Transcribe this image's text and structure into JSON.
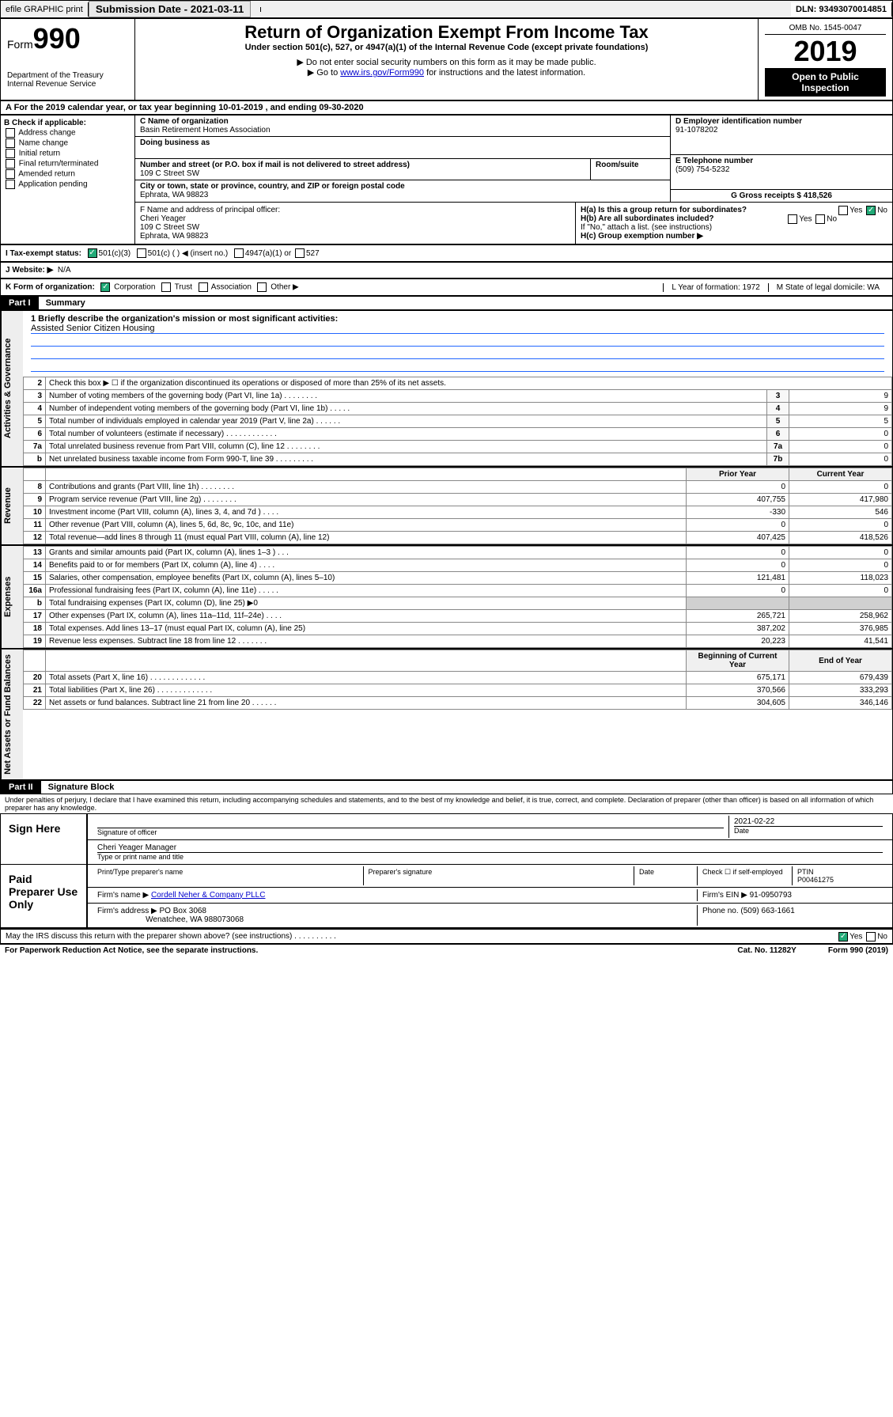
{
  "topbar": {
    "efile": "efile GRAPHIC print",
    "submission_label": "Submission Date - 2021-03-11",
    "dln": "DLN: 93493070014851"
  },
  "header": {
    "form_word": "Form",
    "form_num": "990",
    "dept": "Department of the Treasury",
    "irs": "Internal Revenue Service",
    "title": "Return of Organization Exempt From Income Tax",
    "subtitle": "Under section 501(c), 527, or 4947(a)(1) of the Internal Revenue Code (except private foundations)",
    "note1": "▶ Do not enter social security numbers on this form as it may be made public.",
    "note2_pre": "▶ Go to ",
    "note2_link": "www.irs.gov/Form990",
    "note2_post": " for instructions and the latest information.",
    "omb": "OMB No. 1545-0047",
    "year": "2019",
    "open": "Open to Public Inspection"
  },
  "row_a": "A For the 2019 calendar year, or tax year beginning 10-01-2019    , and ending 09-30-2020",
  "col_b": {
    "title": "B Check if applicable:",
    "items": [
      "Address change",
      "Name change",
      "Initial return",
      "Final return/terminated",
      "Amended return",
      "Application pending"
    ]
  },
  "cd": {
    "name_lbl": "C Name of organization",
    "name": "Basin Retirement Homes Association",
    "dba_lbl": "Doing business as",
    "addr_lbl": "Number and street (or P.O. box if mail is not delivered to street address)",
    "room_lbl": "Room/suite",
    "addr": "109 C Street SW",
    "city_lbl": "City or town, state or province, country, and ZIP or foreign postal code",
    "city": "Ephrata, WA  98823"
  },
  "de": {
    "d_lbl": "D Employer identification number",
    "ein": "91-1078202",
    "e_lbl": "E Telephone number",
    "phone": "(509) 754-5232",
    "g_lbl": "G Gross receipts $ 418,526"
  },
  "f": {
    "lbl": "F  Name and address of principal officer:",
    "name": "Cheri Yeager",
    "addr1": "109 C Street SW",
    "addr2": "Ephrata, WA  98823"
  },
  "h": {
    "ha": "H(a)  Is this a group return for subordinates?",
    "hb": "H(b)  Are all subordinates included?",
    "hb_note": "If \"No,\" attach a list. (see instructions)",
    "hc": "H(c)  Group exemption number ▶",
    "yes": "Yes",
    "no": "No"
  },
  "i": {
    "lbl": "I     Tax-exempt status:",
    "o1": "501(c)(3)",
    "o2": "501(c) (  ) ◀ (insert no.)",
    "o3": "4947(a)(1) or",
    "o4": "527"
  },
  "j": {
    "lbl": "J    Website: ▶",
    "val": "N/A"
  },
  "k": {
    "lbl": "K Form of organization:",
    "o1": "Corporation",
    "o2": "Trust",
    "o3": "Association",
    "o4": "Other ▶",
    "l": "L Year of formation: 1972",
    "m": "M State of legal domicile: WA"
  },
  "part1": {
    "hdr": "Part I",
    "title": "Summary"
  },
  "mission": {
    "lbl": "1  Briefly describe the organization's mission or most significant activities:",
    "text": "Assisted Senior Citizen Housing"
  },
  "gov_lines": [
    {
      "n": "2",
      "t": "Check this box ▶ ☐  if the organization discontinued its operations or disposed of more than 25% of its net assets."
    },
    {
      "n": "3",
      "t": "Number of voting members of the governing body (Part VI, line 1a)   .    .    .    .    .    .    .    .",
      "b": "3",
      "v": "9"
    },
    {
      "n": "4",
      "t": "Number of independent voting members of the governing body (Part VI, line 1b)   .    .    .    .    .",
      "b": "4",
      "v": "9"
    },
    {
      "n": "5",
      "t": "Total number of individuals employed in calendar year 2019 (Part V, line 2a)   .    .    .    .    .    .",
      "b": "5",
      "v": "5"
    },
    {
      "n": "6",
      "t": "Total number of volunteers (estimate if necessary)   .    .    .    .    .    .    .    .    .    .    .    .",
      "b": "6",
      "v": "0"
    },
    {
      "n": "7a",
      "t": "Total unrelated business revenue from Part VIII, column (C), line 12   .    .    .    .    .    .    .    .",
      "b": "7a",
      "v": "0"
    },
    {
      "n": "b",
      "t": "Net unrelated business taxable income from Form 990-T, line 39   .    .    .    .    .    .    .    .    .",
      "b": "7b",
      "v": "0"
    }
  ],
  "rev_hdr": {
    "py": "Prior Year",
    "cy": "Current Year"
  },
  "rev_lines": [
    {
      "n": "8",
      "t": "Contributions and grants (Part VIII, line 1h)   .    .    .    .    .    .    .    .",
      "py": "0",
      "cy": "0"
    },
    {
      "n": "9",
      "t": "Program service revenue (Part VIII, line 2g)   .    .    .    .    .    .    .    .",
      "py": "407,755",
      "cy": "417,980"
    },
    {
      "n": "10",
      "t": "Investment income (Part VIII, column (A), lines 3, 4, and 7d )   .    .    .    .",
      "py": "-330",
      "cy": "546"
    },
    {
      "n": "11",
      "t": "Other revenue (Part VIII, column (A), lines 5, 6d, 8c, 9c, 10c, and 11e)",
      "py": "0",
      "cy": "0"
    },
    {
      "n": "12",
      "t": "Total revenue—add lines 8 through 11 (must equal Part VIII, column (A), line 12)",
      "py": "407,425",
      "cy": "418,526"
    }
  ],
  "exp_lines": [
    {
      "n": "13",
      "t": "Grants and similar amounts paid (Part IX, column (A), lines 1–3 )   .    .    .",
      "py": "0",
      "cy": "0"
    },
    {
      "n": "14",
      "t": "Benefits paid to or for members (Part IX, column (A), line 4)   .    .    .    .",
      "py": "0",
      "cy": "0"
    },
    {
      "n": "15",
      "t": "Salaries, other compensation, employee benefits (Part IX, column (A), lines 5–10)",
      "py": "121,481",
      "cy": "118,023"
    },
    {
      "n": "16a",
      "t": "Professional fundraising fees (Part IX, column (A), line 11e)   .    .    .    .    .",
      "py": "0",
      "cy": "0"
    },
    {
      "n": "b",
      "t": "Total fundraising expenses (Part IX, column (D), line 25) ▶0",
      "py": "",
      "cy": "",
      "shade": true
    },
    {
      "n": "17",
      "t": "Other expenses (Part IX, column (A), lines 11a–11d, 11f–24e)   .    .    .    .",
      "py": "265,721",
      "cy": "258,962"
    },
    {
      "n": "18",
      "t": "Total expenses. Add lines 13–17 (must equal Part IX, column (A), line 25)",
      "py": "387,202",
      "cy": "376,985"
    },
    {
      "n": "19",
      "t": "Revenue less expenses. Subtract line 18 from line 12   .    .    .    .    .    .    .",
      "py": "20,223",
      "cy": "41,541"
    }
  ],
  "na_hdr": {
    "py": "Beginning of Current Year",
    "cy": "End of Year"
  },
  "na_lines": [
    {
      "n": "20",
      "t": "Total assets (Part X, line 16)   .    .    .    .    .    .    .    .    .    .    .    .    .",
      "py": "675,171",
      "cy": "679,439"
    },
    {
      "n": "21",
      "t": "Total liabilities (Part X, line 26)   .    .    .    .    .    .    .    .    .    .    .    .    .",
      "py": "370,566",
      "cy": "333,293"
    },
    {
      "n": "22",
      "t": "Net assets or fund balances. Subtract line 21 from line 20   .    .    .    .    .    .",
      "py": "304,605",
      "cy": "346,146"
    }
  ],
  "sides": {
    "gov": "Activities & Governance",
    "rev": "Revenue",
    "exp": "Expenses",
    "na": "Net Assets or Fund Balances"
  },
  "part2": {
    "hdr": "Part II",
    "title": "Signature Block"
  },
  "perjury": "Under penalties of perjury, I declare that I have examined this return, including accompanying schedules and statements, and to the best of my knowledge and belief, it is true, correct, and complete. Declaration of preparer (other than officer) is based on all information of which preparer has any knowledge.",
  "sign": {
    "here": "Sign Here",
    "sig_lbl": "Signature of officer",
    "date": "2021-02-22",
    "date_lbl": "Date",
    "name": "Cheri Yeager  Manager",
    "name_lbl": "Type or print name and title"
  },
  "paid": {
    "title": "Paid Preparer Use Only",
    "h1": "Print/Type preparer's name",
    "h2": "Preparer's signature",
    "h3": "Date",
    "chk_lbl": "Check ☐ if self-employed",
    "ptin_lbl": "PTIN",
    "ptin": "P00461275",
    "firm_lbl": "Firm's name    ▶",
    "firm": "Cordell Neher & Company PLLC",
    "ein_lbl": "Firm's EIN ▶",
    "ein": "91-0950793",
    "addr_lbl": "Firm's address ▶",
    "addr1": "PO Box 3068",
    "addr2": "Wenatchee, WA  988073068",
    "phone_lbl": "Phone no.",
    "phone": "(509) 663-1661"
  },
  "discuss": "May the IRS discuss this return with the preparer shown above? (see instructions)   .    .    .    .    .    .    .    .    .    .",
  "footer": {
    "pra": "For Paperwork Reduction Act Notice, see the separate instructions.",
    "cat": "Cat. No. 11282Y",
    "form": "Form 990 (2019)"
  }
}
